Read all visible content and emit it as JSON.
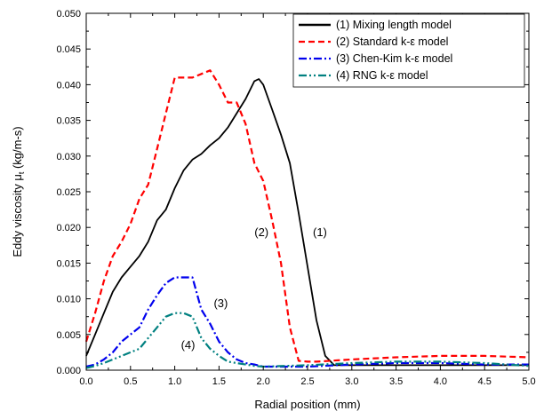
{
  "chart_data": {
    "type": "line",
    "xlabel": "Radial position (mm)",
    "ylabel_main": "Eddy viscosity μ",
    "ylabel_sub": "t",
    "ylabel_unit": " (kg/m-s)",
    "xlim": [
      0.0,
      5.0
    ],
    "ylim": [
      0.0,
      0.05
    ],
    "xticks": [
      "0.0",
      "0.5",
      "1.0",
      "1.5",
      "2.0",
      "2.5",
      "3.0",
      "3.5",
      "4.0",
      "4.5",
      "5.0"
    ],
    "yticks": [
      "0.000",
      "0.005",
      "0.010",
      "0.015",
      "0.020",
      "0.025",
      "0.030",
      "0.035",
      "0.040",
      "0.045",
      "0.050"
    ],
    "grid": false,
    "legend_position": "top-right",
    "series": [
      {
        "name": "(1) Mixing length model",
        "color": "#000000",
        "dash": "solid",
        "x": [
          0.0,
          0.1,
          0.2,
          0.3,
          0.4,
          0.5,
          0.6,
          0.7,
          0.8,
          0.9,
          1.0,
          1.1,
          1.2,
          1.3,
          1.4,
          1.5,
          1.6,
          1.7,
          1.8,
          1.9,
          1.95,
          2.0,
          2.1,
          2.2,
          2.3,
          2.4,
          2.5,
          2.6,
          2.7,
          2.8,
          2.9,
          3.0,
          3.5,
          4.0,
          4.5,
          5.0
        ],
        "y": [
          0.002,
          0.005,
          0.008,
          0.011,
          0.013,
          0.0145,
          0.016,
          0.018,
          0.021,
          0.0225,
          0.0255,
          0.028,
          0.0295,
          0.0303,
          0.0315,
          0.0325,
          0.034,
          0.036,
          0.038,
          0.0405,
          0.0408,
          0.04,
          0.0365,
          0.033,
          0.029,
          0.022,
          0.0145,
          0.007,
          0.002,
          0.0007,
          0.0007,
          0.0007,
          0.0007,
          0.0007,
          0.0007,
          0.0007
        ]
      },
      {
        "name": "(2) Standard k-ε model",
        "color": "#ff0000",
        "dash": "dashed",
        "x": [
          0.0,
          0.1,
          0.2,
          0.3,
          0.4,
          0.5,
          0.6,
          0.7,
          0.8,
          0.9,
          1.0,
          1.1,
          1.2,
          1.3,
          1.4,
          1.5,
          1.6,
          1.7,
          1.8,
          1.9,
          2.0,
          2.1,
          2.2,
          2.3,
          2.4,
          2.5,
          2.6,
          3.0,
          3.5,
          4.0,
          4.5,
          5.0
        ],
        "y": [
          0.004,
          0.008,
          0.0125,
          0.016,
          0.018,
          0.0205,
          0.024,
          0.026,
          0.031,
          0.036,
          0.041,
          0.041,
          0.041,
          0.0415,
          0.042,
          0.04,
          0.0375,
          0.0375,
          0.0345,
          0.029,
          0.0265,
          0.021,
          0.015,
          0.006,
          0.0013,
          0.0012,
          0.0012,
          0.0015,
          0.0018,
          0.002,
          0.002,
          0.0018
        ]
      },
      {
        "name": "(3) Chen-Kim k-ε model",
        "color": "#0000ee",
        "dash": "dashdot",
        "x": [
          0.0,
          0.1,
          0.2,
          0.3,
          0.4,
          0.5,
          0.6,
          0.7,
          0.8,
          0.9,
          1.0,
          1.1,
          1.2,
          1.3,
          1.4,
          1.5,
          1.6,
          1.7,
          1.8,
          1.9,
          2.0,
          2.5,
          3.0,
          3.5,
          4.0,
          4.5,
          5.0
        ],
        "y": [
          0.0005,
          0.0008,
          0.0015,
          0.0025,
          0.004,
          0.005,
          0.006,
          0.0085,
          0.0105,
          0.0122,
          0.013,
          0.013,
          0.013,
          0.0085,
          0.0065,
          0.004,
          0.0025,
          0.0015,
          0.001,
          0.0008,
          0.0005,
          0.0005,
          0.0008,
          0.001,
          0.001,
          0.0008,
          0.0008
        ]
      },
      {
        "name": "(4) RNG k-ε model",
        "color": "#008080",
        "dash": "dashdotdot",
        "x": [
          0.0,
          0.1,
          0.2,
          0.3,
          0.4,
          0.5,
          0.6,
          0.7,
          0.8,
          0.9,
          1.0,
          1.1,
          1.2,
          1.3,
          1.4,
          1.5,
          1.6,
          1.7,
          1.8,
          1.9,
          2.0,
          2.5,
          3.0,
          3.5,
          4.0,
          4.5,
          5.0
        ],
        "y": [
          0.0003,
          0.0006,
          0.001,
          0.0015,
          0.002,
          0.0025,
          0.003,
          0.0045,
          0.006,
          0.0075,
          0.008,
          0.008,
          0.0075,
          0.0045,
          0.003,
          0.002,
          0.0012,
          0.001,
          0.0008,
          0.0006,
          0.0005,
          0.0007,
          0.001,
          0.0012,
          0.0012,
          0.001,
          0.0006
        ]
      }
    ],
    "annotations": [
      {
        "text": "(1)",
        "x": 2.64,
        "y": 0.0193
      },
      {
        "text": "(2)",
        "x": 1.98,
        "y": 0.0193
      },
      {
        "text": "(3)",
        "x": 1.52,
        "y": 0.0093
      },
      {
        "text": "(4)",
        "x": 1.15,
        "y": 0.0035
      }
    ]
  }
}
